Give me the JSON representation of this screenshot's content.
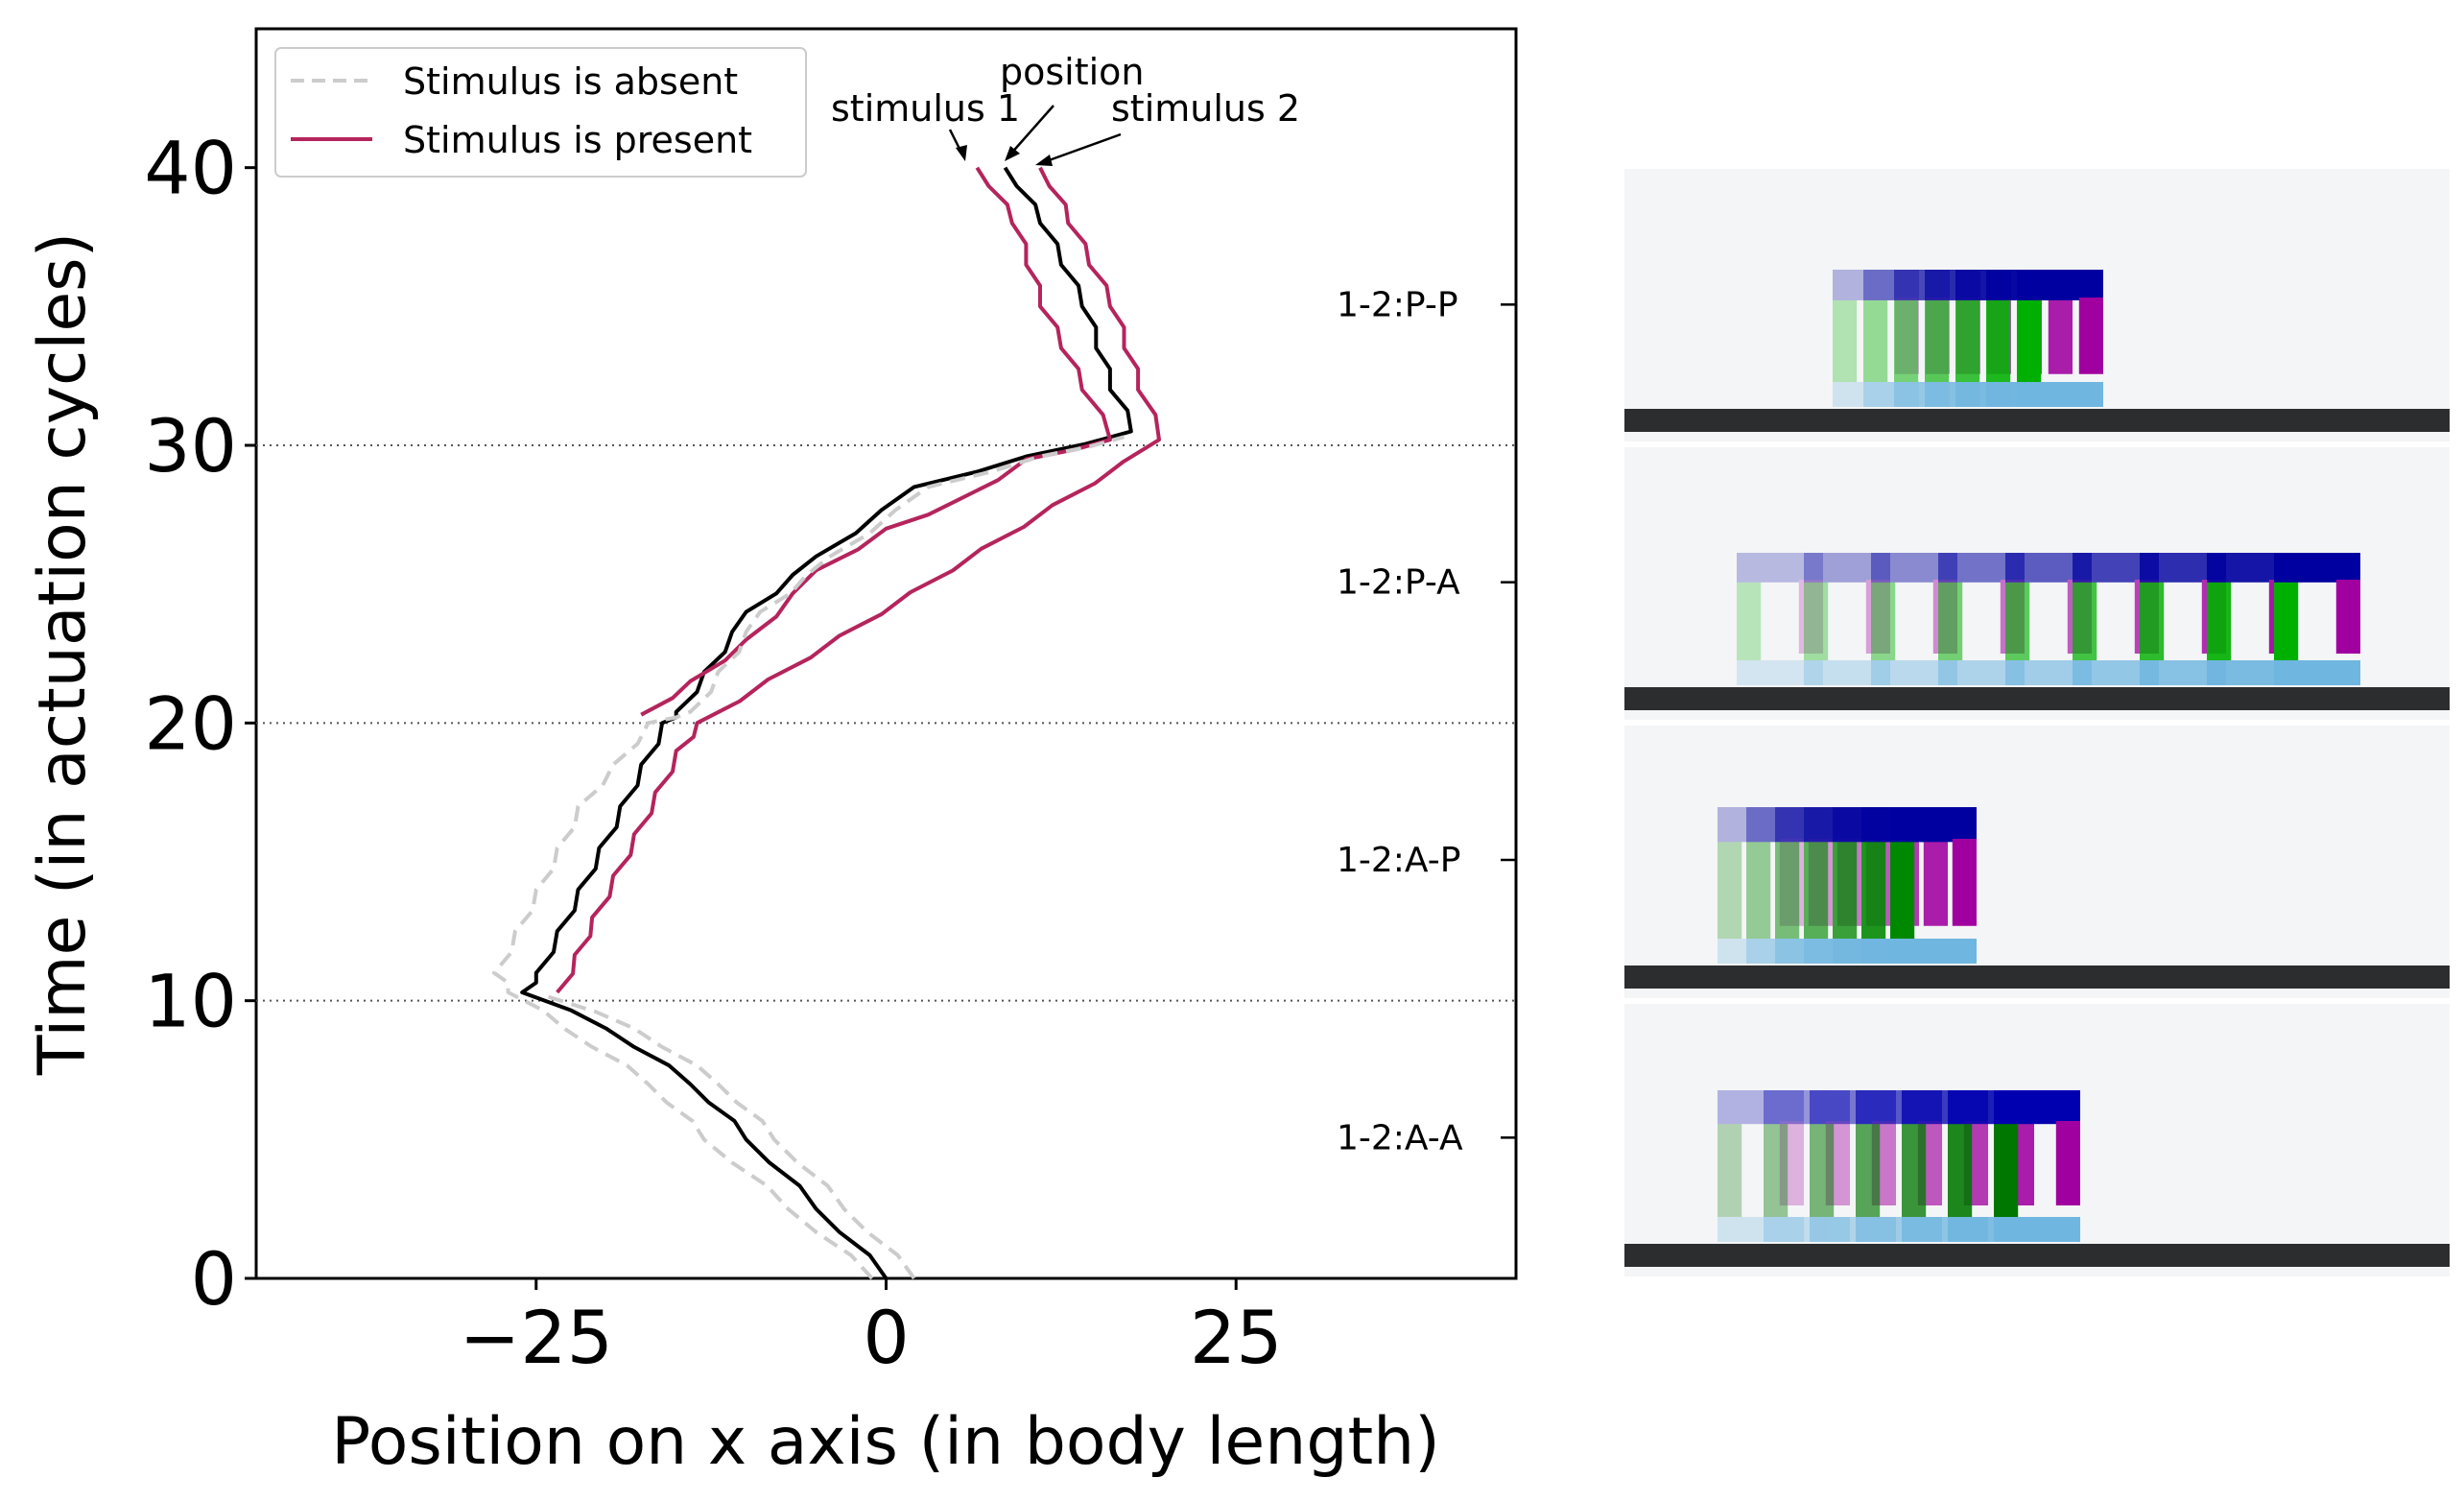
{
  "chart_data": {
    "type": "line",
    "xlabel": "Position on x axis (in body length)",
    "ylabel": "Time (in actuation cycles)",
    "xlim": [
      -45,
      45
    ],
    "ylim": [
      0,
      45
    ],
    "xticks": [
      -25,
      0,
      25
    ],
    "xtick_labels": [
      "−25",
      "0",
      "25"
    ],
    "yticks": [
      0,
      10,
      20,
      30,
      40
    ],
    "ytick_labels": [
      "0",
      "10",
      "20",
      "30",
      "40"
    ],
    "hlines": [
      10,
      20,
      30
    ],
    "legend": {
      "placement": "upper-left",
      "entries": [
        {
          "label": "Stimulus is absent",
          "color": "#cccccc",
          "style": "dashed"
        },
        {
          "label": "Stimulus is present",
          "color": "#b5245c",
          "style": "solid"
        }
      ]
    },
    "annotations": [
      {
        "text": "stimulus 1"
      },
      {
        "text": "position"
      },
      {
        "text": "stimulus 2"
      }
    ],
    "phase_labels": [
      {
        "text": "1-2:P-P",
        "y": 35
      },
      {
        "text": "1-2:P-A",
        "y": 25
      },
      {
        "text": "1-2:A-P",
        "y": 15
      },
      {
        "text": "1-2:A-A",
        "y": 5
      }
    ],
    "series": [
      {
        "role": "position",
        "color": "#000000",
        "style": "solid",
        "points": [
          [
            0,
            0
          ],
          [
            -5,
            2.5
          ],
          [
            -10,
            5
          ],
          [
            -14,
            7
          ],
          [
            -20,
            9
          ],
          [
            -26,
            10.3
          ],
          [
            -25,
            11
          ],
          [
            -22,
            14
          ],
          [
            -19,
            17
          ],
          [
            -16,
            20
          ],
          [
            -15,
            20.4
          ],
          [
            -10,
            24
          ],
          [
            -5,
            26
          ],
          [
            2,
            28.5
          ],
          [
            10,
            29.6
          ],
          [
            17.5,
            30.5
          ],
          [
            16,
            32
          ],
          [
            14,
            35
          ],
          [
            11,
            38
          ],
          [
            8.5,
            40
          ]
        ]
      },
      {
        "role": "stimulus 1",
        "color": "#b5245c",
        "style": "solid",
        "points": [
          [
            -17.5,
            20.3
          ],
          [
            -14,
            21.5
          ],
          [
            -10,
            23
          ],
          [
            -5,
            25.5
          ],
          [
            0,
            27
          ],
          [
            5,
            28
          ],
          [
            10,
            29.5
          ],
          [
            16,
            30.2
          ],
          [
            14,
            32
          ],
          [
            11,
            35
          ],
          [
            9,
            38
          ],
          [
            6.5,
            40
          ]
        ]
      },
      {
        "role": "stimulus 2",
        "color": "#b5245c",
        "style": "solid",
        "points": [
          [
            -23.5,
            10.3
          ],
          [
            -21,
            13
          ],
          [
            -18,
            16
          ],
          [
            -15,
            19
          ],
          [
            -13.5,
            20
          ],
          [
            19.5,
            30.2
          ],
          [
            18,
            32
          ],
          [
            16,
            35
          ],
          [
            13,
            38
          ],
          [
            11,
            40
          ]
        ]
      },
      {
        "role": "absent-lower",
        "color": "#cccccc",
        "style": "dashed",
        "points": [
          [
            2,
            0
          ],
          [
            -3,
            2.5
          ],
          [
            -8,
            5
          ],
          [
            -12,
            7
          ],
          [
            -18,
            9
          ],
          [
            -24.5,
            10.2
          ]
        ]
      },
      {
        "role": "absent-upper",
        "color": "#cccccc",
        "style": "dashed",
        "points": [
          [
            -1,
            0
          ],
          [
            -7,
            2.5
          ],
          [
            -13,
            5
          ],
          [
            -17,
            7
          ],
          [
            -23,
            9
          ],
          [
            -27,
            10.3
          ],
          [
            -28,
            11
          ],
          [
            -25,
            14
          ],
          [
            -22,
            17
          ],
          [
            -17,
            20
          ],
          [
            -14,
            20.4
          ],
          [
            -9,
            24
          ],
          [
            -4,
            26
          ],
          [
            3,
            28.5
          ],
          [
            11,
            29.6
          ],
          [
            17,
            30.3
          ]
        ]
      }
    ]
  },
  "images": [
    {
      "label": "1-2:P-P",
      "robot_colors": [
        "#00b000",
        "#0000a0",
        "#a000a0",
        "#6fb6e0"
      ]
    },
    {
      "label": "1-2:P-A",
      "robot_colors": [
        "#00b000",
        "#0000a0",
        "#a000a0",
        "#6fb6e0"
      ]
    },
    {
      "label": "1-2:A-P",
      "robot_colors": [
        "#008800",
        "#0000a0",
        "#a000a0",
        "#6fb6e0"
      ]
    },
    {
      "label": "1-2:A-A",
      "robot_colors": [
        "#007700",
        "#0000b0",
        "#a000a0",
        "#6fb6e0"
      ]
    }
  ],
  "colors": {
    "axes": "#000000",
    "grid": "#555555",
    "ground": "#2b2d2f",
    "panel_bg": "#f4f5f6"
  }
}
